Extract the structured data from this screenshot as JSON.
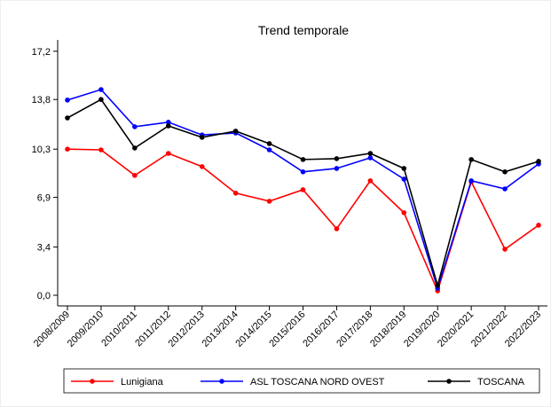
{
  "chart_data": {
    "type": "line",
    "title": "Trend temporale",
    "categories": [
      "2008/2009",
      "2009/2010",
      "2010/2011",
      "2011/2012",
      "2012/2013",
      "2013/2014",
      "2014/2015",
      "2015/2016",
      "2016/2017",
      "2017/2018",
      "2018/2019",
      "2019/2020",
      "2020/2021",
      "2021/2022",
      "2022/2023"
    ],
    "series": [
      {
        "name": "Lunigiana",
        "color": "#ff0000",
        "values": [
          10.3,
          10.25,
          8.45,
          10.0,
          9.07,
          7.2,
          6.63,
          7.44,
          4.69,
          8.07,
          5.82,
          0.31,
          8.0,
          3.25,
          4.94
        ]
      },
      {
        "name": "ASL TOSCANA NORD OVEST",
        "color": "#0000ff",
        "values": [
          13.76,
          14.5,
          11.88,
          12.2,
          11.3,
          11.44,
          10.25,
          8.7,
          8.94,
          9.69,
          8.19,
          0.5,
          8.07,
          7.5,
          9.26
        ]
      },
      {
        "name": "TOSCANA",
        "color": "#000000",
        "values": [
          12.5,
          13.8,
          10.38,
          11.94,
          11.13,
          11.57,
          10.69,
          9.57,
          9.63,
          10.0,
          8.94,
          0.69,
          9.57,
          8.7,
          9.44
        ]
      }
    ],
    "ylim": [
      -0.75,
      18.0
    ],
    "yticks": [
      {
        "value": 0,
        "label": "0,0"
      },
      {
        "value": 3.4,
        "label": "3,4"
      },
      {
        "value": 6.9,
        "label": "6,9"
      },
      {
        "value": 10.3,
        "label": "10,3"
      },
      {
        "value": 13.8,
        "label": "13,8"
      },
      {
        "value": 17.2,
        "label": "17,2"
      }
    ],
    "legend": "bottom"
  }
}
